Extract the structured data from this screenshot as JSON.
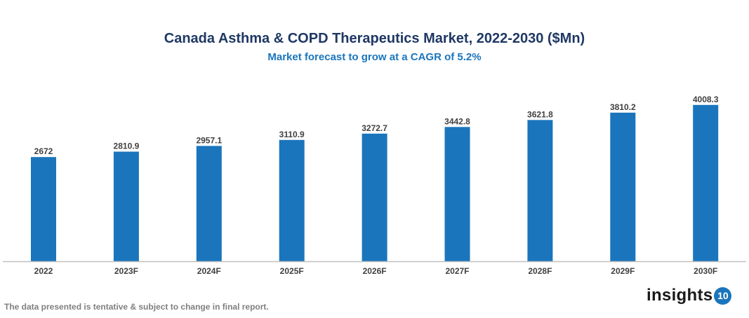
{
  "chart_data": {
    "type": "bar",
    "title": "Canada Asthma & COPD Therapeutics Market, 2022-2030 ($Mn)",
    "subtitle": "Market forecast to grow at a CAGR of 5.2%",
    "categories": [
      "2022",
      "2023F",
      "2024F",
      "2025F",
      "2026F",
      "2027F",
      "2028F",
      "2029F",
      "2030F"
    ],
    "values": [
      2672,
      2810.9,
      2957.1,
      3110.9,
      3272.7,
      3442.8,
      3621.8,
      3810.2,
      4008.3
    ],
    "xlabel": "",
    "ylabel": "",
    "ylim": [
      0,
      4400
    ],
    "grid": false,
    "bar_color": "#1a75bc",
    "data_labels": true
  },
  "footnote": "The data presented is tentative & subject to change in final report.",
  "logo": {
    "text": "insights",
    "badge": "10"
  }
}
